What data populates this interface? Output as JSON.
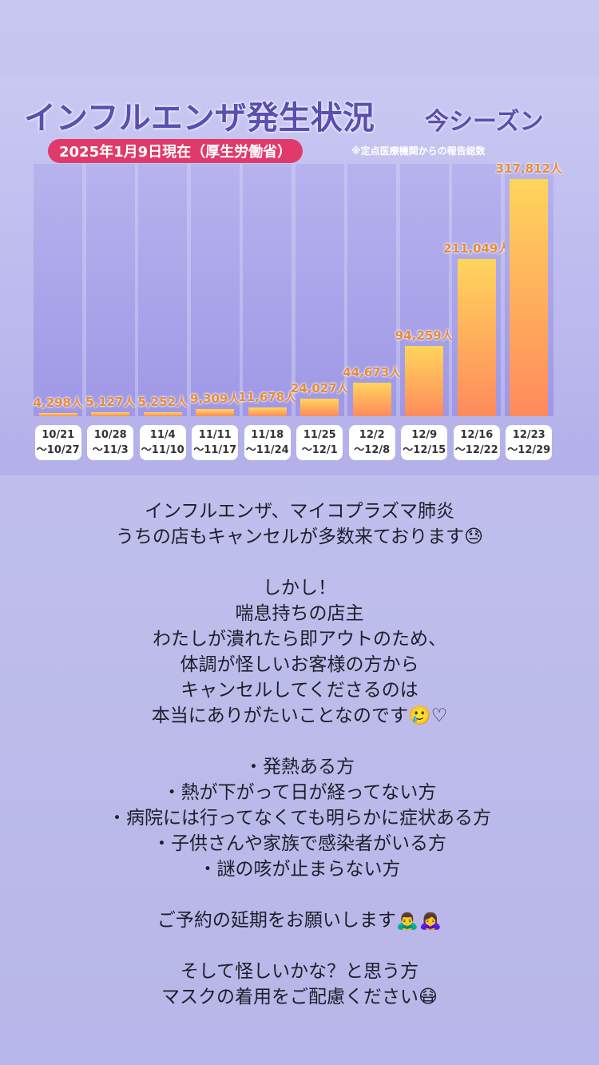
{
  "chart_data": {
    "type": "bar",
    "title": "インフルエンザ発生状況",
    "title_suffix": "今シーズン",
    "subtitle": "2025年1月9日現在（厚生労働省）",
    "note": "※定点医療機関からの報告総数",
    "categories": [
      "10/21\n〜10/27",
      "10/28\n〜11/3",
      "11/4\n〜11/10",
      "11/11\n〜11/17",
      "11/18\n〜11/24",
      "11/25\n〜12/1",
      "12/2\n〜12/8",
      "12/9\n〜12/15",
      "12/16\n〜12/22",
      "12/23\n〜12/29"
    ],
    "values": [
      4298,
      5127,
      5252,
      9309,
      11678,
      24027,
      44673,
      94259,
      211049,
      317812
    ],
    "value_labels": [
      "4,298人",
      "5,127人",
      "5,252人",
      "9,309人",
      "11,678人",
      "24,027人",
      "44,673人",
      "94,259人",
      "211,049人",
      "317,812人"
    ]
  },
  "story": {
    "paragraphs": [
      [
        "インフルエンザ、マイコプラズマ肺炎",
        "うちの店もキャンセルが多数来ております😓"
      ],
      [
        "しかし！",
        "喘息持ちの店主",
        "わたしが潰れたら即アウトのため、",
        "体調が怪しいお客様の方から",
        "キャンセルしてくださるのは",
        "本当にありがたいことなのです🥲♡"
      ],
      [
        "・発熱ある方",
        "・熱が下がって日が経ってない方",
        "・病院には行ってなくても明らかに症状ある方",
        "・子供さんや家族で感染者がいる方",
        "・謎の咳が止まらない方"
      ],
      [
        "ご予約の延期をお願いします🙇‍♂️🙇‍♀️"
      ],
      [
        "そして怪しいかな？と思う方",
        "マスクの着用をご配慮ください😷"
      ]
    ]
  }
}
